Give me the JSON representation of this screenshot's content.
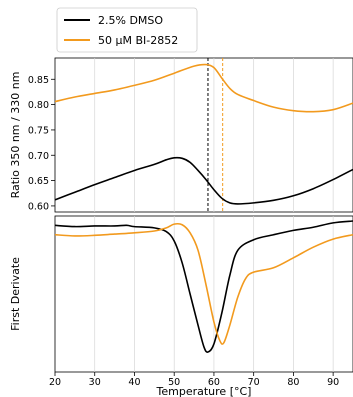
{
  "chart_data": [
    {
      "type": "line",
      "panel": "top",
      "ylabel": "Ratio 350 nm / 330 nm",
      "xlim": [
        20,
        95
      ],
      "ylim": [
        0.588,
        0.892
      ],
      "yticks": [
        "0.60",
        "0.65",
        "0.70",
        "0.75",
        "0.80",
        "0.85"
      ],
      "grid": "vertical",
      "legend": {
        "placement": "top-left",
        "entries": [
          "2.5% DMSO",
          "50 µM BI-2852"
        ]
      },
      "series": [
        {
          "name": "2.5% DMSO",
          "color": "#000000",
          "points": [
            [
              20,
              0.612
            ],
            [
              25,
              0.627
            ],
            [
              30,
              0.642
            ],
            [
              35,
              0.656
            ],
            [
              40,
              0.67
            ],
            [
              45,
              0.682
            ],
            [
              48,
              0.691
            ],
            [
              50,
              0.695
            ],
            [
              52,
              0.694
            ],
            [
              54,
              0.686
            ],
            [
              56,
              0.67
            ],
            [
              58,
              0.652
            ],
            [
              60,
              0.632
            ],
            [
              62,
              0.615
            ],
            [
              64,
              0.606
            ],
            [
              66,
              0.604
            ],
            [
              70,
              0.606
            ],
            [
              75,
              0.611
            ],
            [
              80,
              0.62
            ],
            [
              85,
              0.634
            ],
            [
              90,
              0.652
            ],
            [
              95,
              0.672
            ]
          ]
        },
        {
          "name": "50 µM BI-2852",
          "color": "#f29a1e",
          "points": [
            [
              20,
              0.806
            ],
            [
              25,
              0.815
            ],
            [
              30,
              0.822
            ],
            [
              35,
              0.829
            ],
            [
              40,
              0.838
            ],
            [
              45,
              0.848
            ],
            [
              50,
              0.862
            ],
            [
              55,
              0.876
            ],
            [
              58,
              0.879
            ],
            [
              60,
              0.873
            ],
            [
              62,
              0.852
            ],
            [
              64,
              0.832
            ],
            [
              66,
              0.82
            ],
            [
              70,
              0.808
            ],
            [
              75,
              0.795
            ],
            [
              80,
              0.788
            ],
            [
              85,
              0.786
            ],
            [
              90,
              0.79
            ],
            [
              95,
              0.803
            ]
          ]
        }
      ],
      "vlines": [
        {
          "x": 58.5,
          "color": "#000000",
          "style": "dashed"
        },
        {
          "x": 62.2,
          "color": "#f29a1e",
          "style": "dashed"
        }
      ]
    },
    {
      "type": "line",
      "panel": "bottom",
      "xlabel": "Temperature [°C]",
      "ylabel": "First Derivate",
      "xlim": [
        20,
        95
      ],
      "ylim": [
        -0.0235,
        0.0015
      ],
      "xticks": [
        "20",
        "30",
        "40",
        "50",
        "60",
        "70",
        "80",
        "90"
      ],
      "grid": "vertical",
      "series": [
        {
          "name": "2.5% DMSO",
          "color": "#000000",
          "points": [
            [
              20,
              0.0
            ],
            [
              25,
              -0.0002
            ],
            [
              30,
              -0.0001
            ],
            [
              35,
              -0.0001
            ],
            [
              38,
              0.0
            ],
            [
              40,
              -0.0002
            ],
            [
              45,
              -0.0004
            ],
            [
              48,
              -0.001
            ],
            [
              50,
              -0.0025
            ],
            [
              52,
              -0.006
            ],
            [
              54,
              -0.011
            ],
            [
              56,
              -0.016
            ],
            [
              57.5,
              -0.0195
            ],
            [
              58.5,
              -0.0203
            ],
            [
              60,
              -0.019
            ],
            [
              62,
              -0.014
            ],
            [
              64,
              -0.008
            ],
            [
              66,
              -0.004
            ],
            [
              70,
              -0.0023
            ],
            [
              75,
              -0.0015
            ],
            [
              80,
              -0.0008
            ],
            [
              85,
              -0.0003
            ],
            [
              90,
              0.0004
            ],
            [
              95,
              0.0007
            ]
          ]
        },
        {
          "name": "50 µM BI-2852",
          "color": "#f29a1e",
          "points": [
            [
              20,
              -0.0015
            ],
            [
              25,
              -0.0017
            ],
            [
              30,
              -0.0016
            ],
            [
              35,
              -0.0014
            ],
            [
              40,
              -0.0012
            ],
            [
              45,
              -0.0009
            ],
            [
              48,
              -0.0004
            ],
            [
              50,
              0.0002
            ],
            [
              52,
              0.0001
            ],
            [
              54,
              -0.0012
            ],
            [
              56,
              -0.004
            ],
            [
              58,
              -0.0095
            ],
            [
              60,
              -0.0155
            ],
            [
              61.5,
              -0.0185
            ],
            [
              62.5,
              -0.0188
            ],
            [
              64,
              -0.016
            ],
            [
              66,
              -0.0115
            ],
            [
              68,
              -0.0085
            ],
            [
              70,
              -0.0075
            ],
            [
              75,
              -0.0068
            ],
            [
              80,
              -0.0052
            ],
            [
              85,
              -0.0035
            ],
            [
              90,
              -0.0022
            ],
            [
              95,
              -0.0015
            ]
          ]
        }
      ]
    }
  ]
}
